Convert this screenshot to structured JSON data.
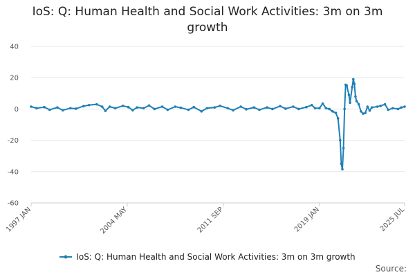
{
  "chart_data": {
    "type": "line",
    "title": "IoS: Q: Human Health and Social Work Activities: 3m on 3m growth",
    "xlabel": "",
    "ylabel": "",
    "ylim": [
      -60,
      40
    ],
    "yticks": [
      40,
      20,
      0,
      -20,
      -40,
      -60
    ],
    "xticks": [
      "1997 JAN",
      "2004 MAY",
      "2011 SEP",
      "2019 JAN",
      "2025 JUL"
    ],
    "x_range": [
      "1997 JAN",
      "2025 JUL"
    ],
    "grid": "horizontal",
    "legend_position": "bottom",
    "series": [
      {
        "name": "IoS: Q: Human Health and Social Work Activities: 3m on 3m growth",
        "color": "#1f7fb5",
        "points": [
          [
            "1997-01",
            1.5
          ],
          [
            "1997-06",
            0.5
          ],
          [
            "1998-01",
            1.2
          ],
          [
            "1998-06",
            -0.5
          ],
          [
            "1999-01",
            1.0
          ],
          [
            "1999-06",
            -0.8
          ],
          [
            "2000-01",
            0.5
          ],
          [
            "2000-06",
            0.2
          ],
          [
            "2001-01",
            1.8
          ],
          [
            "2001-06",
            2.5
          ],
          [
            "2002-01",
            3.0
          ],
          [
            "2002-06",
            1.5
          ],
          [
            "2002-09",
            -1.2
          ],
          [
            "2003-01",
            1.5
          ],
          [
            "2003-06",
            0.5
          ],
          [
            "2004-01",
            2.0
          ],
          [
            "2004-06",
            1.2
          ],
          [
            "2004-10",
            -0.8
          ],
          [
            "2005-02",
            1.0
          ],
          [
            "2005-08",
            0.5
          ],
          [
            "2006-01",
            2.2
          ],
          [
            "2006-06",
            0.0
          ],
          [
            "2007-01",
            1.5
          ],
          [
            "2007-06",
            -0.5
          ],
          [
            "2008-01",
            1.5
          ],
          [
            "2008-06",
            0.8
          ],
          [
            "2009-01",
            -0.5
          ],
          [
            "2009-06",
            1.2
          ],
          [
            "2010-01",
            -1.5
          ],
          [
            "2010-06",
            0.5
          ],
          [
            "2011-01",
            1.0
          ],
          [
            "2011-06",
            2.0
          ],
          [
            "2012-01",
            0.5
          ],
          [
            "2012-06",
            -0.8
          ],
          [
            "2013-01",
            1.5
          ],
          [
            "2013-06",
            -0.2
          ],
          [
            "2014-01",
            1.0
          ],
          [
            "2014-06",
            -0.5
          ],
          [
            "2015-01",
            1.0
          ],
          [
            "2015-06",
            0.0
          ],
          [
            "2016-01",
            1.8
          ],
          [
            "2016-06",
            0.2
          ],
          [
            "2017-01",
            1.5
          ],
          [
            "2017-06",
            0.0
          ],
          [
            "2018-01",
            1.2
          ],
          [
            "2018-06",
            2.5
          ],
          [
            "2018-09",
            0.5
          ],
          [
            "2019-01",
            0.5
          ],
          [
            "2019-04",
            3.5
          ],
          [
            "2019-07",
            0.5
          ],
          [
            "2019-10",
            0.0
          ],
          [
            "2020-01",
            -1.5
          ],
          [
            "2020-04",
            -2.5
          ],
          [
            "2020-06",
            -6.0
          ],
          [
            "2020-08",
            -20.0
          ],
          [
            "2020-09",
            -35.0
          ],
          [
            "2020-10",
            -38.5
          ],
          [
            "2020-11",
            -25.0
          ],
          [
            "2020-12",
            0.0
          ],
          [
            "2021-01",
            15.5
          ],
          [
            "2021-02",
            15.0
          ],
          [
            "2021-04",
            9.0
          ],
          [
            "2021-05",
            4.0
          ],
          [
            "2021-07",
            14.0
          ],
          [
            "2021-08",
            19.0
          ],
          [
            "2021-09",
            16.0
          ],
          [
            "2021-10",
            8.0
          ],
          [
            "2021-11",
            5.0
          ],
          [
            "2022-01",
            3.0
          ],
          [
            "2022-03",
            -1.5
          ],
          [
            "2022-05",
            -3.0
          ],
          [
            "2022-07",
            -2.5
          ],
          [
            "2022-09",
            1.5
          ],
          [
            "2022-11",
            -1.0
          ],
          [
            "2023-01",
            1.0
          ],
          [
            "2023-06",
            1.5
          ],
          [
            "2023-09",
            2.0
          ],
          [
            "2024-01",
            3.0
          ],
          [
            "2024-04",
            -0.5
          ],
          [
            "2024-08",
            0.5
          ],
          [
            "2025-01",
            0.0
          ],
          [
            "2025-04",
            1.0
          ],
          [
            "2025-07",
            1.5
          ]
        ]
      }
    ]
  },
  "source_label": "Source:"
}
